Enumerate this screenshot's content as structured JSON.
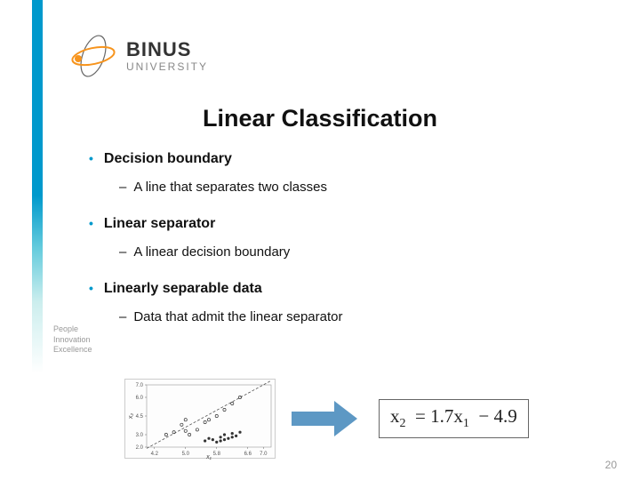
{
  "logo": {
    "name": "BINUS",
    "sub": "UNIVERSITY",
    "ring_color": "#666666",
    "orbit_color": "#f7941d",
    "dot_color": "#f7941d"
  },
  "sidebar": {
    "color": "#0099cc"
  },
  "title": "Linear Classification",
  "bullets": [
    {
      "label": "Decision boundary",
      "sub": "A line that separates two classes"
    },
    {
      "label": "Linear separator",
      "sub": "A linear decision boundary"
    },
    {
      "label": "Linearly separable data",
      "sub": "Data that admit the linear separator"
    }
  ],
  "bullet_dot_color": "#0099cc",
  "tagline": [
    "People",
    "Innovation",
    "Excellence"
  ],
  "scatter": {
    "xlim": [
      4.0,
      7.2
    ],
    "ylim": [
      2.0,
      7.0
    ],
    "xticks": [
      4.2,
      5.0,
      5.8,
      6.6,
      7.0
    ],
    "yticks": [
      2.0,
      3.0,
      4.5,
      6.0,
      7.0
    ],
    "axis_label_x": "x₁",
    "axis_label_y": "x₂",
    "line_slope": 1.7,
    "line_intercept": -4.9,
    "class_open": [
      [
        4.5,
        3.0
      ],
      [
        4.7,
        3.2
      ],
      [
        5.0,
        3.3
      ],
      [
        4.9,
        3.8
      ],
      [
        5.1,
        3.0
      ],
      [
        5.3,
        3.4
      ],
      [
        5.5,
        4.0
      ],
      [
        5.8,
        4.5
      ],
      [
        6.0,
        5.0
      ],
      [
        6.2,
        5.5
      ],
      [
        6.4,
        6.0
      ],
      [
        5.6,
        4.2
      ],
      [
        5.0,
        4.2
      ]
    ],
    "class_filled": [
      [
        5.5,
        2.5
      ],
      [
        5.7,
        2.6
      ],
      [
        5.9,
        2.8
      ],
      [
        6.0,
        3.0
      ],
      [
        6.1,
        2.7
      ],
      [
        6.2,
        3.1
      ],
      [
        6.3,
        2.9
      ],
      [
        5.8,
        2.4
      ],
      [
        6.4,
        3.2
      ],
      [
        5.6,
        2.7
      ],
      [
        5.9,
        2.5
      ],
      [
        6.0,
        2.6
      ],
      [
        6.2,
        2.8
      ]
    ],
    "marker_color": "#333333",
    "line_color": "#555555",
    "grid_color": "#dddddd",
    "background": "#fdfdfd",
    "tick_fontsize": 6
  },
  "equation": {
    "lhs_var": "x",
    "lhs_sub": "2",
    "slope": "1.7",
    "rhs_var": "x",
    "rhs_sub": "1",
    "intercept": "4.9",
    "border_color": "#666666"
  },
  "arrow_color": "#5d98c4",
  "slide_number": "20"
}
